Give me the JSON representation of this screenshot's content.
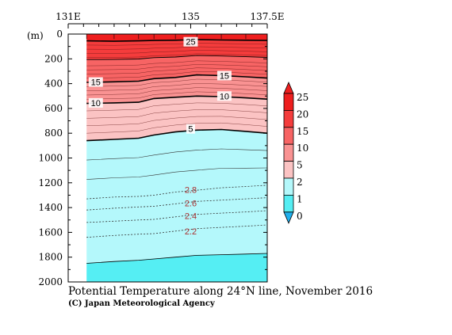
{
  "chart_data": {
    "type": "area",
    "title": "Potential Temperature along 24°N line, November 2016",
    "credit": "(C) Japan Meteorological Agency",
    "x_axis": {
      "ticks": [
        "131E",
        "135",
        "137.5E"
      ],
      "tick_values": [
        131,
        135,
        137.5
      ],
      "range": [
        131,
        137.5
      ]
    },
    "y_axis": {
      "label": "(m)",
      "ticks": [
        0,
        200,
        400,
        600,
        800,
        1000,
        1200,
        1400,
        1600,
        1800,
        2000
      ],
      "range": [
        0,
        2000
      ],
      "inverted": true
    },
    "data_extent_lon": [
      131.6,
      137.5
    ],
    "x": [
      131.6,
      132.5,
      133.3,
      133.8,
      134.5,
      135.2,
      136.0,
      136.8,
      137.5
    ],
    "isotherms": [
      {
        "value": 25,
        "depth": [
          55,
          58,
          55,
          52,
          50,
          45,
          48,
          50,
          52
        ]
      },
      {
        "value": 15,
        "depth": [
          390,
          385,
          380,
          360,
          350,
          330,
          335,
          345,
          355
        ]
      },
      {
        "value": 10,
        "depth": [
          560,
          555,
          550,
          520,
          510,
          500,
          505,
          515,
          525
        ]
      },
      {
        "value": 5,
        "depth": [
          860,
          850,
          840,
          815,
          790,
          775,
          770,
          785,
          800
        ]
      },
      {
        "value": 2.8,
        "depth": [
          1330,
          1315,
          1310,
          1300,
          1275,
          1260,
          1240,
          1230,
          1220
        ]
      },
      {
        "value": 2.6,
        "depth": [
          1420,
          1405,
          1395,
          1390,
          1370,
          1350,
          1340,
          1330,
          1320
        ]
      },
      {
        "value": 2.4,
        "depth": [
          1520,
          1510,
          1500,
          1495,
          1475,
          1455,
          1445,
          1435,
          1425
        ]
      },
      {
        "value": 2.2,
        "depth": [
          1640,
          1625,
          1615,
          1610,
          1590,
          1570,
          1560,
          1550,
          1540
        ]
      },
      {
        "value": 2,
        "depth": [
          1850,
          1835,
          1825,
          1815,
          1800,
          1785,
          1780,
          1775,
          1770
        ]
      }
    ],
    "contour_labels": [
      {
        "text": "25",
        "lon": 135.0,
        "depth": 62
      },
      {
        "text": "15",
        "lon": 136.1,
        "depth": 335
      },
      {
        "text": "15",
        "lon": 131.9,
        "depth": 387
      },
      {
        "text": "10",
        "lon": 136.1,
        "depth": 500
      },
      {
        "text": "10",
        "lon": 131.9,
        "depth": 555
      },
      {
        "text": "5",
        "lon": 135.0,
        "depth": 765
      },
      {
        "text": "2.8",
        "lon": 135.0,
        "depth": 1255
      },
      {
        "text": "2.6",
        "lon": 135.0,
        "depth": 1365
      },
      {
        "text": "2.4",
        "lon": 135.0,
        "depth": 1465
      },
      {
        "text": "2.2",
        "lon": 135.0,
        "depth": 1590
      }
    ],
    "colorbar": {
      "labels": [
        "25",
        "20",
        "15",
        "10",
        "5",
        "2",
        "1",
        "0"
      ],
      "colors": [
        "#ee1e1e",
        "#f43c3c",
        "#f76464",
        "#f99292",
        "#fbc3c3",
        "#b4f8fb",
        "#55eef3",
        "#1fb0ee"
      ]
    },
    "fill_colors": {
      "above_25": "#ee1e1e",
      "20_25": "#f43c3c",
      "15_20": "#f76464",
      "10_15": "#f99292",
      "5_10": "#fbc3c3",
      "2_5": "#b4f8fb",
      "below_2": "#55eef3"
    }
  }
}
